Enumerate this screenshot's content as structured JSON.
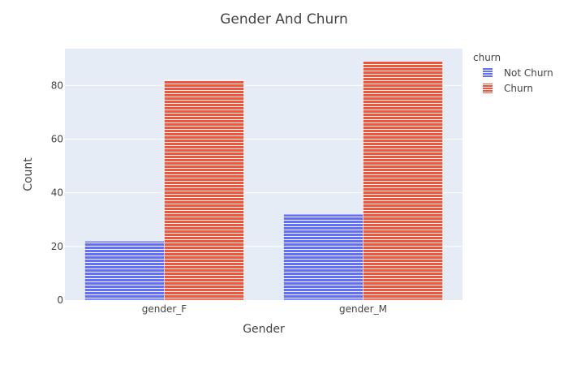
{
  "chart_data": {
    "type": "bar",
    "title": "Gender And Churn",
    "xlabel": "Gender",
    "ylabel": "Count",
    "categories": [
      "gender_F",
      "gender_M"
    ],
    "series": [
      {
        "name": "Not Churn",
        "values": [
          22,
          32
        ],
        "color": "#636efa"
      },
      {
        "name": "Churn",
        "values": [
          82,
          89
        ],
        "color": "#ef553b"
      }
    ],
    "ylim": [
      0,
      93.7
    ],
    "yticks": [
      0,
      20,
      40,
      60,
      80
    ],
    "grid": true,
    "legend": {
      "title": "churn",
      "position": "top-right"
    },
    "plot_background": "#e5ecf6"
  }
}
